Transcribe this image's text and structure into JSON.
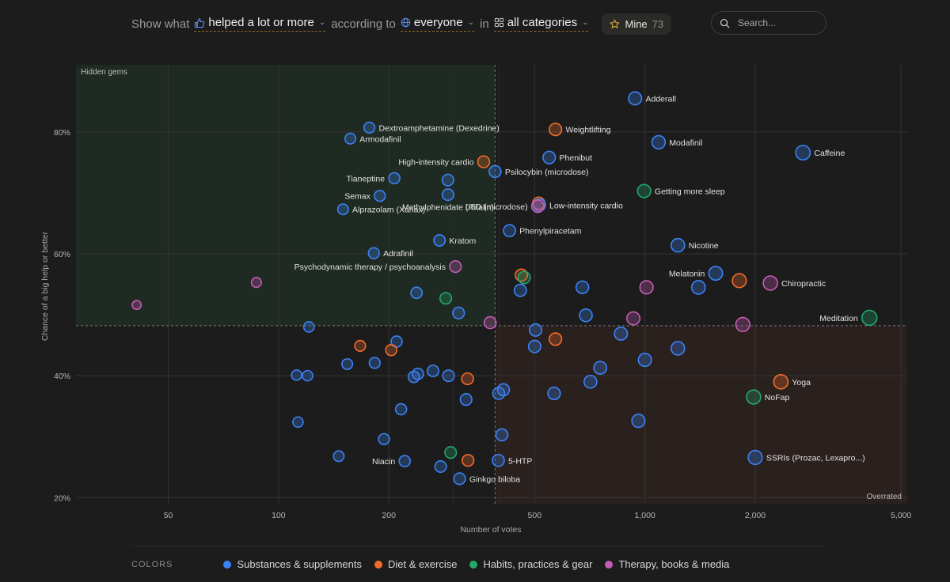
{
  "toolbar": {
    "show_word": "Show what",
    "metric_label": "helped a lot or more",
    "according_word": "according to",
    "audience_label": "everyone",
    "in_word": "in",
    "category_label": "all categories",
    "mine_label": "Mine",
    "mine_count": "73"
  },
  "search": {
    "placeholder": "Search..."
  },
  "legend": {
    "title": "COLORS",
    "items": [
      {
        "label": "Substances & supplements",
        "color": "#3b82f6"
      },
      {
        "label": "Diet & exercise",
        "color": "#f26b2a"
      },
      {
        "label": "Habits, practices & gear",
        "color": "#22a86b"
      },
      {
        "label": "Therapy, books & media",
        "color": "#c65bb6"
      }
    ]
  },
  "chart_data": {
    "type": "scatter",
    "xlabel": "Number of votes",
    "ylabel": "Chance of a big help or better",
    "x_scale": "log",
    "xlim": [
      28,
      5200
    ],
    "ylim": [
      19,
      91
    ],
    "x_ticks": [
      {
        "value": 50,
        "label": "50"
      },
      {
        "value": 100,
        "label": "100"
      },
      {
        "value": 200,
        "label": "200"
      },
      {
        "value": 500,
        "label": "500"
      },
      {
        "value": 1000,
        "label": "1,000"
      },
      {
        "value": 2000,
        "label": "2,000"
      },
      {
        "value": 5000,
        "label": "5,000"
      }
    ],
    "y_ticks": [
      {
        "value": 20,
        "label": "20%"
      },
      {
        "value": 40,
        "label": "40%"
      },
      {
        "value": 60,
        "label": "60%"
      },
      {
        "value": 80,
        "label": "80%"
      }
    ],
    "x_minor_gridlines": [
      300,
      400
    ],
    "grid": true,
    "split_x": 390,
    "split_y": 48.2,
    "quadrant_labels": {
      "top_left": "Hidden gems",
      "bottom_right": "Overrated"
    },
    "category_colors": {
      "substance": "#3b82f6",
      "diet": "#f26b2a",
      "habit": "#22a86b",
      "therapy": "#c65bb6"
    },
    "points": [
      {
        "label": "Adderall",
        "x": 940,
        "y": 85.5,
        "cat": "substance",
        "label_side": "right"
      },
      {
        "label": "Dextroamphetamine (Dexedrine)",
        "x": 177,
        "y": 80.7,
        "cat": "substance",
        "label_side": "right"
      },
      {
        "label": "Weightlifting",
        "x": 570,
        "y": 80.4,
        "cat": "diet",
        "label_side": "right"
      },
      {
        "label": "Armodafinil",
        "x": 157,
        "y": 78.9,
        "cat": "substance",
        "label_side": "right"
      },
      {
        "label": "Modafinil",
        "x": 1090,
        "y": 78.3,
        "cat": "substance",
        "label_side": "right"
      },
      {
        "label": "Caffeine",
        "x": 2700,
        "y": 76.6,
        "cat": "substance",
        "label_side": "right"
      },
      {
        "label": "Phenibut",
        "x": 548,
        "y": 75.8,
        "cat": "substance",
        "label_side": "right"
      },
      {
        "label": "High-intensity cardio",
        "x": 363,
        "y": 75.1,
        "cat": "diet",
        "label_side": "left"
      },
      {
        "label": "Psilocybin (microdose)",
        "x": 390,
        "y": 73.5,
        "cat": "substance",
        "label_side": "right"
      },
      {
        "label": "Tianeptine",
        "x": 207,
        "y": 72.4,
        "cat": "substance",
        "label_side": "left"
      },
      {
        "label": "",
        "x": 290,
        "y": 72.1,
        "cat": "substance",
        "label_side": "right"
      },
      {
        "label": "Getting more sleep",
        "x": 995,
        "y": 70.3,
        "cat": "habit",
        "label_side": "right"
      },
      {
        "label": "Methylphenidate (Ritalin)",
        "x": 290,
        "y": 69.7,
        "cat": "substance",
        "label_side": "below"
      },
      {
        "label": "Semax",
        "x": 189,
        "y": 69.5,
        "cat": "substance",
        "label_side": "left"
      },
      {
        "label": "",
        "x": 513,
        "y": 68.3,
        "cat": "diet",
        "label_side": "right"
      },
      {
        "label": "Low-intensity cardio",
        "x": 515,
        "y": 68.0,
        "cat": "substance",
        "label_side": "right"
      },
      {
        "label": "LSD (microdose)",
        "x": 510,
        "y": 67.8,
        "cat": "therapy",
        "label_side": "left"
      },
      {
        "label": "Alprazolam (Xanax)",
        "x": 150,
        "y": 67.3,
        "cat": "substance",
        "label_side": "right"
      },
      {
        "label": "Phenylpiracetam",
        "x": 427,
        "y": 63.8,
        "cat": "substance",
        "label_side": "right"
      },
      {
        "label": "Kratom",
        "x": 275,
        "y": 62.2,
        "cat": "substance",
        "label_side": "right"
      },
      {
        "label": "Nicotine",
        "x": 1230,
        "y": 61.4,
        "cat": "substance",
        "label_side": "right"
      },
      {
        "label": "Adrafinil",
        "x": 182,
        "y": 60.1,
        "cat": "substance",
        "label_side": "right"
      },
      {
        "label": "Psychodynamic therapy / psychoanalysis",
        "x": 304,
        "y": 57.9,
        "cat": "therapy",
        "label_side": "left"
      },
      {
        "label": "Melatonin",
        "x": 1560,
        "y": 56.8,
        "cat": "substance",
        "label_side": "left"
      },
      {
        "label": "",
        "x": 460,
        "y": 56.5,
        "cat": "diet",
        "label_side": "right"
      },
      {
        "label": "",
        "x": 468,
        "y": 56.1,
        "cat": "habit",
        "label_side": "right"
      },
      {
        "label": "",
        "x": 1810,
        "y": 55.6,
        "cat": "diet",
        "label_side": "right"
      },
      {
        "label": "Chiropractic",
        "x": 2200,
        "y": 55.2,
        "cat": "therapy",
        "label_side": "right"
      },
      {
        "label": "",
        "x": 87,
        "y": 55.3,
        "cat": "therapy",
        "label_side": "right"
      },
      {
        "label": "",
        "x": 1010,
        "y": 54.5,
        "cat": "therapy",
        "label_side": "right"
      },
      {
        "label": "",
        "x": 1400,
        "y": 54.5,
        "cat": "substance",
        "label_side": "right"
      },
      {
        "label": "",
        "x": 675,
        "y": 54.5,
        "cat": "substance",
        "label_side": "right"
      },
      {
        "label": "",
        "x": 457,
        "y": 54.0,
        "cat": "substance",
        "label_side": "right"
      },
      {
        "label": "",
        "x": 238,
        "y": 53.6,
        "cat": "substance",
        "label_side": "right"
      },
      {
        "label": "",
        "x": 286,
        "y": 52.7,
        "cat": "habit",
        "label_side": "right"
      },
      {
        "label": "",
        "x": 41,
        "y": 51.6,
        "cat": "therapy",
        "label_side": "right"
      },
      {
        "label": "",
        "x": 310,
        "y": 50.3,
        "cat": "substance",
        "label_side": "right"
      },
      {
        "label": "",
        "x": 690,
        "y": 49.9,
        "cat": "substance",
        "label_side": "right"
      },
      {
        "label": "Meditation",
        "x": 4100,
        "y": 49.5,
        "cat": "habit",
        "label_side": "left"
      },
      {
        "label": "",
        "x": 930,
        "y": 49.4,
        "cat": "therapy",
        "label_side": "right"
      },
      {
        "label": "",
        "x": 378,
        "y": 48.7,
        "cat": "therapy",
        "label_side": "right"
      },
      {
        "label": "",
        "x": 1850,
        "y": 48.4,
        "cat": "therapy",
        "label_side": "right"
      },
      {
        "label": "",
        "x": 121,
        "y": 48.0,
        "cat": "substance",
        "label_side": "right"
      },
      {
        "label": "",
        "x": 503,
        "y": 47.5,
        "cat": "substance",
        "label_side": "right"
      },
      {
        "label": "",
        "x": 860,
        "y": 46.9,
        "cat": "substance",
        "label_side": "right"
      },
      {
        "label": "",
        "x": 570,
        "y": 46.0,
        "cat": "diet",
        "label_side": "right"
      },
      {
        "label": "",
        "x": 210,
        "y": 45.6,
        "cat": "substance",
        "label_side": "right"
      },
      {
        "label": "",
        "x": 167,
        "y": 44.9,
        "cat": "diet",
        "label_side": "right"
      },
      {
        "label": "",
        "x": 500,
        "y": 44.8,
        "cat": "substance",
        "label_side": "right"
      },
      {
        "label": "",
        "x": 1230,
        "y": 44.5,
        "cat": "substance",
        "label_side": "right"
      },
      {
        "label": "",
        "x": 203,
        "y": 44.2,
        "cat": "diet",
        "label_side": "right"
      },
      {
        "label": "",
        "x": 1000,
        "y": 42.6,
        "cat": "substance",
        "label_side": "right"
      },
      {
        "label": "",
        "x": 183,
        "y": 42.1,
        "cat": "substance",
        "label_side": "right"
      },
      {
        "label": "",
        "x": 154,
        "y": 41.9,
        "cat": "substance",
        "label_side": "right"
      },
      {
        "label": "",
        "x": 755,
        "y": 41.3,
        "cat": "substance",
        "label_side": "right"
      },
      {
        "label": "",
        "x": 264,
        "y": 40.8,
        "cat": "substance",
        "label_side": "right"
      },
      {
        "label": "",
        "x": 240,
        "y": 40.3,
        "cat": "substance",
        "label_side": "right"
      },
      {
        "label": "",
        "x": 112,
        "y": 40.1,
        "cat": "substance",
        "label_side": "right"
      },
      {
        "label": "",
        "x": 120,
        "y": 40.0,
        "cat": "substance",
        "label_side": "right"
      },
      {
        "label": "",
        "x": 291,
        "y": 40.0,
        "cat": "substance",
        "label_side": "right"
      },
      {
        "label": "",
        "x": 234,
        "y": 39.8,
        "cat": "substance",
        "label_side": "right"
      },
      {
        "label": "",
        "x": 328,
        "y": 39.5,
        "cat": "diet",
        "label_side": "right"
      },
      {
        "label": "",
        "x": 710,
        "y": 39.0,
        "cat": "substance",
        "label_side": "right"
      },
      {
        "label": "Yoga",
        "x": 2350,
        "y": 39.0,
        "cat": "diet",
        "label_side": "right"
      },
      {
        "label": "",
        "x": 411,
        "y": 37.7,
        "cat": "substance",
        "label_side": "right"
      },
      {
        "label": "",
        "x": 565,
        "y": 37.1,
        "cat": "substance",
        "label_side": "right"
      },
      {
        "label": "",
        "x": 399,
        "y": 37.1,
        "cat": "substance",
        "label_side": "right"
      },
      {
        "label": "NoFap",
        "x": 1980,
        "y": 36.5,
        "cat": "habit",
        "label_side": "right"
      },
      {
        "label": "",
        "x": 325,
        "y": 36.1,
        "cat": "substance",
        "label_side": "right"
      },
      {
        "label": "",
        "x": 216,
        "y": 34.5,
        "cat": "substance",
        "label_side": "right"
      },
      {
        "label": "",
        "x": 960,
        "y": 32.6,
        "cat": "substance",
        "label_side": "right"
      },
      {
        "label": "",
        "x": 113,
        "y": 32.4,
        "cat": "substance",
        "label_side": "right"
      },
      {
        "label": "",
        "x": 407,
        "y": 30.3,
        "cat": "substance",
        "label_side": "right"
      },
      {
        "label": "",
        "x": 194,
        "y": 29.6,
        "cat": "substance",
        "label_side": "right"
      },
      {
        "label": "",
        "x": 295,
        "y": 27.4,
        "cat": "habit",
        "label_side": "right"
      },
      {
        "label": "",
        "x": 146,
        "y": 26.8,
        "cat": "substance",
        "label_side": "right"
      },
      {
        "label": "SSRIs (Prozac, Lexapro...)",
        "x": 2000,
        "y": 26.6,
        "cat": "substance",
        "label_side": "right"
      },
      {
        "label": "Niacin",
        "x": 221,
        "y": 26.0,
        "cat": "substance",
        "label_side": "left"
      },
      {
        "label": "",
        "x": 329,
        "y": 26.1,
        "cat": "diet",
        "label_side": "right"
      },
      {
        "label": "5-HTP",
        "x": 398,
        "y": 26.1,
        "cat": "substance",
        "label_side": "right"
      },
      {
        "label": "",
        "x": 277,
        "y": 25.1,
        "cat": "substance",
        "label_side": "right"
      },
      {
        "label": "Ginkgo biloba",
        "x": 312,
        "y": 23.1,
        "cat": "substance",
        "label_side": "right"
      }
    ]
  }
}
